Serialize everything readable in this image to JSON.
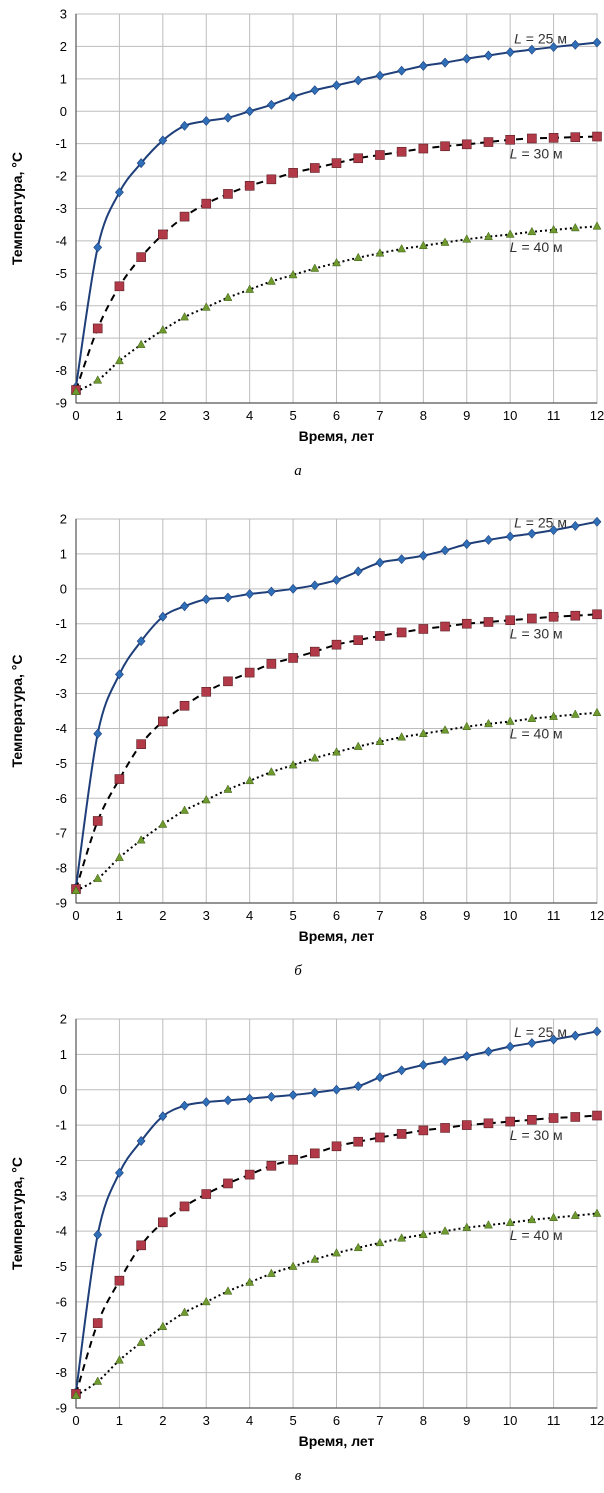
{
  "chart_data": [
    {
      "type": "line",
      "panel_label": "а",
      "xlabel": "Время, лет",
      "ylabel": "Температура, °С",
      "xlim": [
        0,
        12
      ],
      "ylim": [
        -9,
        3
      ],
      "x_ticks": [
        0,
        1,
        2,
        3,
        4,
        5,
        6,
        7,
        8,
        9,
        10,
        11,
        12
      ],
      "y_ticks": [
        3,
        2,
        1,
        0,
        -1,
        -2,
        -3,
        -4,
        -5,
        -6,
        -7,
        -8,
        -9
      ],
      "grid": true,
      "x": [
        0,
        0.5,
        1,
        1.5,
        2,
        2.5,
        3,
        3.5,
        4,
        4.5,
        5,
        5.5,
        6,
        6.5,
        7,
        7.5,
        8,
        8.5,
        9,
        9.5,
        10,
        10.5,
        11,
        11.5,
        12
      ],
      "series": [
        {
          "name_prefix": "L",
          "name_suffix": " = 25 м",
          "color": "#1f3f7a",
          "marker_color": "#2f6fb8",
          "marker": "diamond",
          "line": "solid",
          "values": [
            -8.5,
            -4.2,
            -2.5,
            -1.6,
            -0.9,
            -0.45,
            -0.3,
            -0.2,
            0.0,
            0.2,
            0.45,
            0.65,
            0.8,
            0.95,
            1.1,
            1.25,
            1.4,
            1.5,
            1.62,
            1.72,
            1.82,
            1.9,
            1.98,
            2.05,
            2.12
          ]
        },
        {
          "name_prefix": "L",
          "name_suffix": " = 30 м",
          "color": "#000000",
          "marker_color": "#b23a48",
          "marker": "square",
          "line": "dashed",
          "values": [
            -8.6,
            -6.7,
            -5.4,
            -4.5,
            -3.8,
            -3.25,
            -2.85,
            -2.55,
            -2.3,
            -2.1,
            -1.9,
            -1.75,
            -1.6,
            -1.45,
            -1.35,
            -1.25,
            -1.15,
            -1.08,
            -1.02,
            -0.95,
            -0.88,
            -0.84,
            -0.82,
            -0.8,
            -0.78
          ]
        },
        {
          "name_prefix": "L",
          "name_suffix": " = 40 м",
          "color": "#000000",
          "marker_color": "#6f9a2e",
          "marker": "triangle",
          "line": "dotted",
          "values": [
            -8.65,
            -8.3,
            -7.7,
            -7.2,
            -6.75,
            -6.35,
            -6.05,
            -5.75,
            -5.5,
            -5.25,
            -5.05,
            -4.85,
            -4.68,
            -4.52,
            -4.38,
            -4.25,
            -4.15,
            -4.05,
            -3.95,
            -3.87,
            -3.8,
            -3.72,
            -3.66,
            -3.6,
            -3.55
          ]
        }
      ]
    },
    {
      "type": "line",
      "panel_label": "б",
      "xlabel": "Время, лет",
      "ylabel": "Температура, °С",
      "xlim": [
        0,
        12
      ],
      "ylim": [
        -9,
        2
      ],
      "x_ticks": [
        0,
        1,
        2,
        3,
        4,
        5,
        6,
        7,
        8,
        9,
        10,
        11,
        12
      ],
      "y_ticks": [
        2,
        1,
        0,
        -1,
        -2,
        -3,
        -4,
        -5,
        -6,
        -7,
        -8,
        -9
      ],
      "grid": true,
      "x": [
        0,
        0.5,
        1,
        1.5,
        2,
        2.5,
        3,
        3.5,
        4,
        4.5,
        5,
        5.5,
        6,
        6.5,
        7,
        7.5,
        8,
        8.5,
        9,
        9.5,
        10,
        10.5,
        11,
        11.5,
        12
      ],
      "series": [
        {
          "name_prefix": "L",
          "name_suffix": " = 25 м",
          "color": "#1f3f7a",
          "marker_color": "#2f6fb8",
          "marker": "diamond",
          "line": "solid",
          "values": [
            -8.55,
            -4.15,
            -2.45,
            -1.5,
            -0.8,
            -0.5,
            -0.3,
            -0.25,
            -0.15,
            -0.08,
            0.0,
            0.1,
            0.25,
            0.5,
            0.75,
            0.85,
            0.95,
            1.1,
            1.28,
            1.4,
            1.5,
            1.58,
            1.68,
            1.8,
            1.92
          ]
        },
        {
          "name_prefix": "L",
          "name_suffix": " = 30 м",
          "color": "#000000",
          "marker_color": "#b23a48",
          "marker": "square",
          "line": "dashed",
          "values": [
            -8.6,
            -6.65,
            -5.45,
            -4.45,
            -3.8,
            -3.35,
            -2.95,
            -2.65,
            -2.4,
            -2.15,
            -1.98,
            -1.8,
            -1.6,
            -1.47,
            -1.35,
            -1.25,
            -1.15,
            -1.08,
            -1.0,
            -0.95,
            -0.9,
            -0.85,
            -0.8,
            -0.77,
            -0.73
          ]
        },
        {
          "name_prefix": "L",
          "name_suffix": " = 40 м",
          "color": "#000000",
          "marker_color": "#6f9a2e",
          "marker": "triangle",
          "line": "dotted",
          "values": [
            -8.65,
            -8.3,
            -7.7,
            -7.2,
            -6.75,
            -6.35,
            -6.05,
            -5.75,
            -5.5,
            -5.25,
            -5.05,
            -4.85,
            -4.68,
            -4.52,
            -4.38,
            -4.25,
            -4.15,
            -4.05,
            -3.95,
            -3.87,
            -3.8,
            -3.72,
            -3.66,
            -3.6,
            -3.55
          ]
        }
      ]
    },
    {
      "type": "line",
      "panel_label": "в",
      "xlabel": "Время, лет",
      "ylabel": "Температура, °С",
      "xlim": [
        0,
        12
      ],
      "ylim": [
        -9,
        2
      ],
      "x_ticks": [
        0,
        1,
        2,
        3,
        4,
        5,
        6,
        7,
        8,
        9,
        10,
        11,
        12
      ],
      "y_ticks": [
        2,
        1,
        0,
        -1,
        -2,
        -3,
        -4,
        -5,
        -6,
        -7,
        -8,
        -9
      ],
      "grid": true,
      "x": [
        0,
        0.5,
        1,
        1.5,
        2,
        2.5,
        3,
        3.5,
        4,
        4.5,
        5,
        5.5,
        6,
        6.5,
        7,
        7.5,
        8,
        8.5,
        9,
        9.5,
        10,
        10.5,
        11,
        11.5,
        12
      ],
      "series": [
        {
          "name_prefix": "L",
          "name_suffix": " = 25 м",
          "color": "#1f3f7a",
          "marker_color": "#2f6fb8",
          "marker": "diamond",
          "line": "solid",
          "values": [
            -8.55,
            -4.1,
            -2.35,
            -1.45,
            -0.75,
            -0.45,
            -0.35,
            -0.3,
            -0.25,
            -0.2,
            -0.15,
            -0.08,
            0.0,
            0.1,
            0.35,
            0.55,
            0.7,
            0.82,
            0.95,
            1.08,
            1.22,
            1.32,
            1.42,
            1.53,
            1.65
          ]
        },
        {
          "name_prefix": "L",
          "name_suffix": " = 30 м",
          "color": "#000000",
          "marker_color": "#b23a48",
          "marker": "square",
          "line": "dashed",
          "values": [
            -8.6,
            -6.6,
            -5.4,
            -4.4,
            -3.75,
            -3.3,
            -2.95,
            -2.65,
            -2.4,
            -2.15,
            -1.98,
            -1.8,
            -1.6,
            -1.47,
            -1.35,
            -1.25,
            -1.15,
            -1.08,
            -1.0,
            -0.95,
            -0.9,
            -0.85,
            -0.8,
            -0.77,
            -0.73
          ]
        },
        {
          "name_prefix": "L",
          "name_suffix": " = 40 м",
          "color": "#000000",
          "marker_color": "#6f9a2e",
          "marker": "triangle",
          "line": "dotted",
          "values": [
            -8.65,
            -8.25,
            -7.65,
            -7.15,
            -6.7,
            -6.3,
            -6.0,
            -5.7,
            -5.45,
            -5.2,
            -5.0,
            -4.8,
            -4.62,
            -4.47,
            -4.33,
            -4.2,
            -4.1,
            -4.0,
            -3.9,
            -3.83,
            -3.76,
            -3.68,
            -3.62,
            -3.56,
            -3.5
          ]
        }
      ]
    }
  ]
}
